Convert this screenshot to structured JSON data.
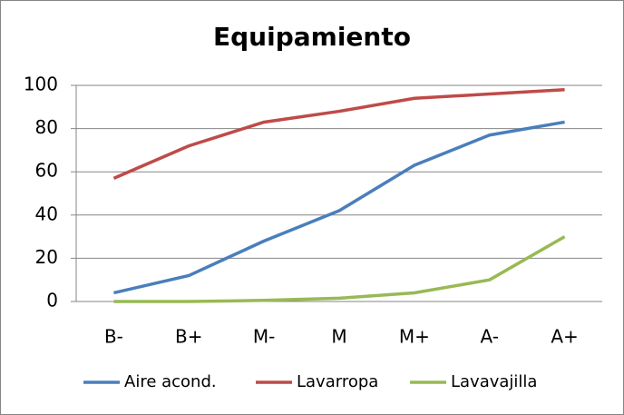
{
  "chart_data": {
    "type": "line",
    "title": "Equipamiento",
    "categories": [
      "B-",
      "B+",
      "M-",
      "M",
      "M+",
      "A-",
      "A+"
    ],
    "series": [
      {
        "name": "Aire acond.",
        "color": "#4a7ebb",
        "values": [
          4,
          12,
          28,
          42,
          63,
          77,
          83
        ]
      },
      {
        "name": "Lavarropa",
        "color": "#be4b48",
        "values": [
          57,
          72,
          83,
          88,
          94,
          96,
          98
        ]
      },
      {
        "name": "Lavavajilla",
        "color": "#98b954",
        "values": [
          0,
          0,
          0.5,
          1.5,
          4,
          10,
          30
        ]
      }
    ],
    "ylim": [
      0,
      100
    ],
    "yticks": [
      0,
      20,
      40,
      60,
      80,
      100
    ],
    "grid": true,
    "legend": "bottom"
  }
}
